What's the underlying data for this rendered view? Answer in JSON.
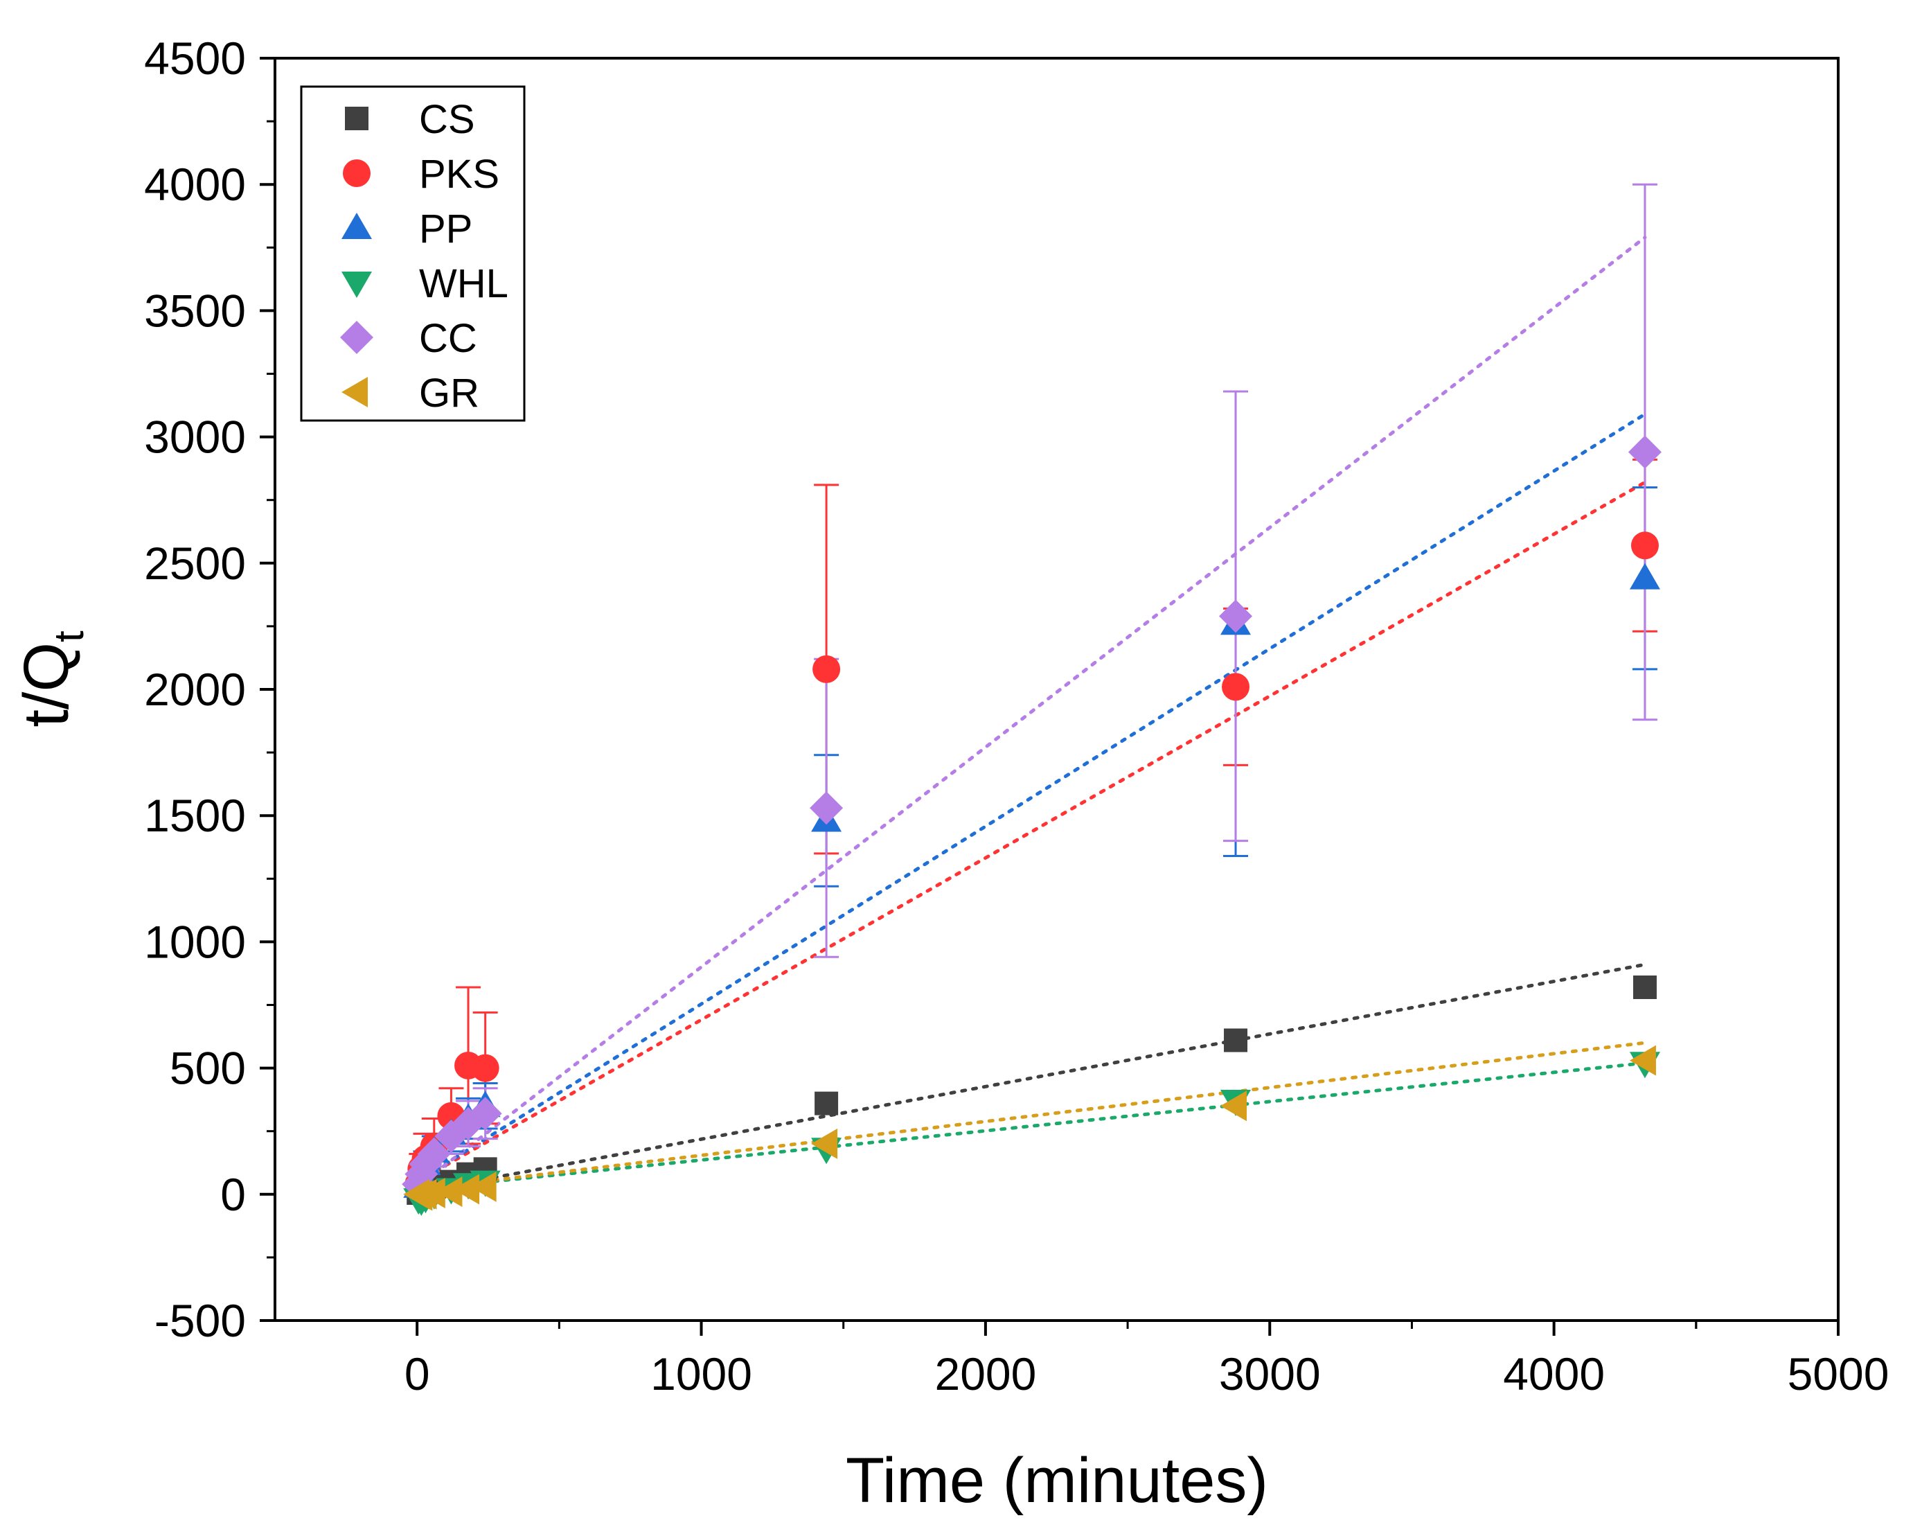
{
  "chart_data": {
    "type": "scatter",
    "xlabel": "Time (minutes)",
    "ylabel": "t/Q",
    "ylabel_subscript": "t",
    "xlim": [
      -500,
      5000
    ],
    "ylim": [
      -500,
      4500
    ],
    "x_ticks": [
      0,
      1000,
      2000,
      3000,
      4000,
      5000
    ],
    "y_ticks": [
      -500,
      0,
      500,
      1000,
      1500,
      2000,
      2500,
      3000,
      3500,
      4000,
      4500
    ],
    "grid": false,
    "legend_position": "top-left",
    "series": [
      {
        "name": "CS",
        "marker": "square",
        "color": "#404040",
        "x": [
          5,
          15,
          30,
          60,
          120,
          180,
          240,
          1440,
          2880,
          4320
        ],
        "y": [
          5,
          10,
          20,
          30,
          50,
          80,
          100,
          360,
          610,
          820
        ],
        "error": [
          0,
          0,
          0,
          0,
          0,
          0,
          0,
          0,
          0,
          0
        ],
        "fit": {
          "x": [
            0,
            4320
          ],
          "y": [
            10,
            910
          ]
        }
      },
      {
        "name": "PKS",
        "marker": "circle",
        "color": "#ff3333",
        "x": [
          5,
          15,
          30,
          60,
          120,
          180,
          240,
          1440,
          2880,
          4320
        ],
        "y": [
          40,
          100,
          140,
          190,
          310,
          510,
          500,
          2080,
          2010,
          2570
        ],
        "error": [
          20,
          60,
          100,
          110,
          110,
          310,
          220,
          730,
          310,
          340
        ],
        "fit": {
          "x": [
            0,
            4320
          ],
          "y": [
            50,
            2820
          ]
        }
      },
      {
        "name": "PP",
        "marker": "triangle-up",
        "color": "#1f6fd6",
        "x": [
          5,
          15,
          30,
          60,
          120,
          180,
          240,
          1440,
          2880,
          4320
        ],
        "y": [
          30,
          80,
          120,
          170,
          240,
          300,
          350,
          1480,
          2260,
          2440
        ],
        "error": [
          10,
          30,
          50,
          60,
          70,
          80,
          90,
          260,
          920,
          360
        ],
        "fit": {
          "x": [
            0,
            4320
          ],
          "y": [
            50,
            3090
          ]
        }
      },
      {
        "name": "WHL",
        "marker": "triangle-down",
        "color": "#1aa86b",
        "x": [
          5,
          15,
          30,
          60,
          120,
          180,
          240,
          1440,
          2880,
          4320
        ],
        "y": [
          -20,
          -25,
          -15,
          0,
          20,
          40,
          50,
          180,
          370,
          520
        ],
        "error": [
          0,
          0,
          0,
          0,
          0,
          0,
          0,
          0,
          0,
          0
        ],
        "fit": {
          "x": [
            0,
            4320
          ],
          "y": [
            20,
            520
          ]
        }
      },
      {
        "name": "CC",
        "marker": "diamond",
        "color": "#b57ee6",
        "x": [
          5,
          15,
          30,
          60,
          120,
          180,
          240,
          1440,
          2880,
          4320
        ],
        "y": [
          40,
          80,
          120,
          160,
          230,
          280,
          320,
          1530,
          2290,
          2940
        ],
        "error": [
          10,
          30,
          40,
          50,
          70,
          90,
          100,
          590,
          890,
          1060
        ],
        "fit": {
          "x": [
            0,
            4320
          ],
          "y": [
            30,
            3790
          ]
        }
      },
      {
        "name": "GR",
        "marker": "triangle-left",
        "color": "#d69e1a",
        "x": [
          5,
          15,
          30,
          60,
          120,
          180,
          240,
          1440,
          2880,
          4320
        ],
        "y": [
          0,
          -5,
          0,
          5,
          10,
          20,
          30,
          200,
          350,
          530
        ],
        "error": [
          0,
          0,
          0,
          0,
          0,
          0,
          0,
          0,
          0,
          0
        ],
        "fit": {
          "x": [
            0,
            4320
          ],
          "y": [
            20,
            600
          ]
        }
      }
    ]
  }
}
